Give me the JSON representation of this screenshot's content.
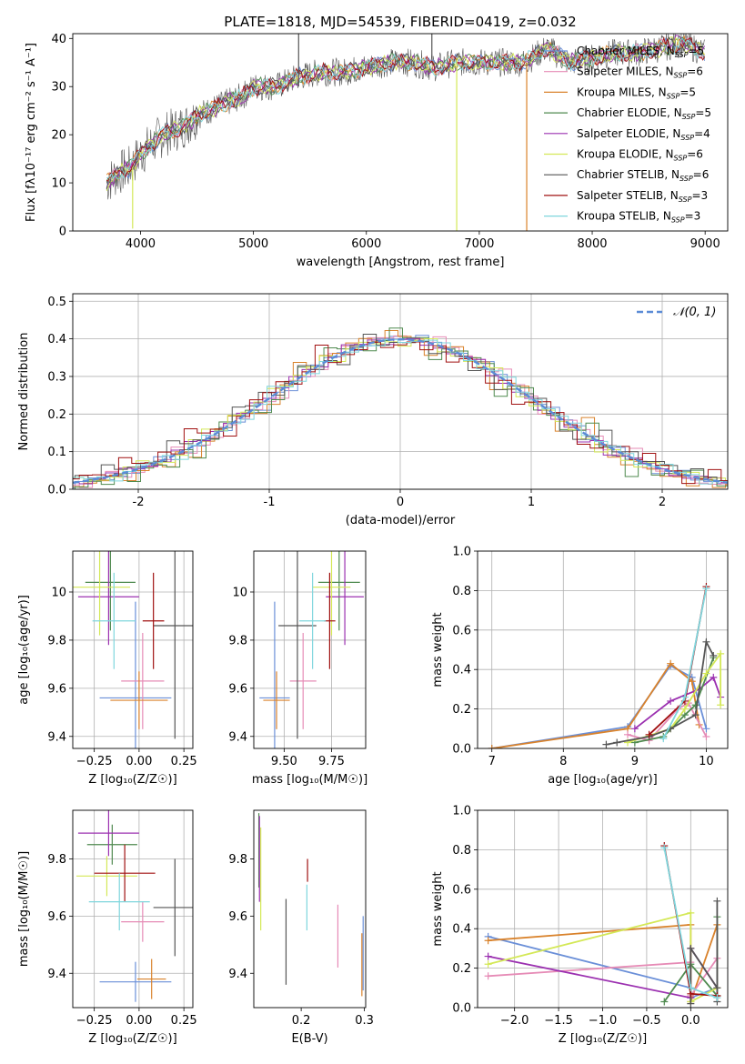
{
  "figure": {
    "title": "PLATE=1818, MJD=54539, FIBERID=0419, z=0.032"
  },
  "colors": {
    "Chabrier MILES": "#6a8fd8",
    "Salpeter MILES": "#e68bb6",
    "Kroupa MILES": "#d9822b",
    "Chabrier ELODIE": "#4f8a4f",
    "Salpeter ELODIE": "#9b30b0",
    "Kroupa ELODIE": "#d4e857",
    "Chabrier STELIB": "#555555",
    "Salpeter STELIB": "#a01010",
    "Kroupa STELIB": "#7fd6dd"
  },
  "chart_data": [
    {
      "id": "spectrum",
      "type": "line",
      "title": "PLATE=1818, MJD=54539, FIBERID=0419, z=0.032",
      "xlabel": "wavelength [Angstrom, rest frame]",
      "ylabel": "Flux [fλ10⁻¹⁷ erg cm⁻² s⁻¹ A⁻¹]",
      "xlim": [
        3400,
        9200
      ],
      "ylim": [
        0,
        41
      ],
      "xticks": [
        4000,
        5000,
        6000,
        7000,
        8000,
        9000
      ],
      "yticks": [
        0,
        10,
        20,
        30,
        40
      ],
      "grid": false,
      "legend_position": "top-right",
      "legend": [
        {
          "series": "Chabrier MILES",
          "text": "Chabrier MILES, N",
          "n": "5"
        },
        {
          "series": "Salpeter MILES",
          "text": "Salpeter MILES, N",
          "n": "6"
        },
        {
          "series": "Kroupa MILES",
          "text": "Kroupa MILES, N",
          "n": "5"
        },
        {
          "series": "Chabrier ELODIE",
          "text": "Chabrier ELODIE, N",
          "n": "5"
        },
        {
          "series": "Salpeter ELODIE",
          "text": "Salpeter ELODIE, N",
          "n": "4"
        },
        {
          "series": "Kroupa ELODIE",
          "text": "Kroupa ELODIE, N",
          "n": "6"
        },
        {
          "series": "Chabrier STELIB",
          "text": "Chabrier STELIB, N",
          "n": "6"
        },
        {
          "series": "Salpeter STELIB",
          "text": "Salpeter STELIB, N",
          "n": "3"
        },
        {
          "series": "Kroupa STELIB",
          "text": "Kroupa STELIB, N",
          "n": "3"
        }
      ],
      "legend_sub": "SSP",
      "continuum": [
        [
          3700,
          10
        ],
        [
          3800,
          12
        ],
        [
          3900,
          13
        ],
        [
          4000,
          16
        ],
        [
          4100,
          18
        ],
        [
          4200,
          20
        ],
        [
          4300,
          21
        ],
        [
          4400,
          22
        ],
        [
          4500,
          24
        ],
        [
          4600,
          25
        ],
        [
          4700,
          26
        ],
        [
          4800,
          27
        ],
        [
          4900,
          28
        ],
        [
          5000,
          30
        ],
        [
          5200,
          30
        ],
        [
          5400,
          32
        ],
        [
          5600,
          33
        ],
        [
          5800,
          33
        ],
        [
          6000,
          34
        ],
        [
          6200,
          35
        ],
        [
          6400,
          35
        ],
        [
          6600,
          34
        ],
        [
          6800,
          35
        ],
        [
          7000,
          35
        ],
        [
          7200,
          35
        ],
        [
          7400,
          35
        ],
        [
          7600,
          38
        ],
        [
          7800,
          35
        ],
        [
          8000,
          36
        ],
        [
          8200,
          37
        ],
        [
          8400,
          37
        ],
        [
          8600,
          38
        ],
        [
          8800,
          39
        ],
        [
          9000,
          37
        ]
      ],
      "features": [
        {
          "x": 5400,
          "y0": 30,
          "y1": 41,
          "series": "Chabrier STELIB"
        },
        {
          "x": 3930,
          "y0": 0.5,
          "y1": 13,
          "series": "Kroupa ELODIE"
        },
        {
          "x": 6800,
          "y0": 0,
          "y1": 36,
          "series": "Kroupa ELODIE"
        },
        {
          "x": 7420,
          "y0": 0,
          "y1": 35,
          "series": "Kroupa MILES"
        },
        {
          "x": 6580,
          "y0": 36,
          "y1": 41,
          "series": "Chabrier STELIB"
        }
      ]
    },
    {
      "id": "residuals",
      "type": "line",
      "xlabel": "(data-model)/error",
      "ylabel": "Normed distribution",
      "xlim": [
        -2.5,
        2.5
      ],
      "ylim": [
        0,
        0.52
      ],
      "xticks": [
        -2,
        -1,
        0,
        1,
        2
      ],
      "yticks": [
        0.0,
        0.1,
        0.2,
        0.3,
        0.4,
        0.5
      ],
      "grid": true,
      "legend_position": "top-right",
      "legend": [
        {
          "text": "𝒩(0, 1)",
          "style": "dashed"
        }
      ],
      "noise": [
        [
          0.03,
          -0.02,
          0.01,
          0.04,
          -0.03,
          0.02,
          -0.01,
          0.03,
          0.05,
          -0.04,
          0.02,
          0.01,
          -0.02,
          0.04,
          -0.03,
          0.06,
          0.01,
          -0.05,
          0.03,
          0.02,
          -0.01,
          0.04,
          -0.02,
          0.03
        ],
        [
          -0.02,
          0.03,
          -0.01,
          0.02,
          0.04,
          -0.03,
          0.01,
          -0.02,
          0.03,
          0.05,
          -0.04,
          0.02,
          0.03,
          -0.01,
          0.02,
          -0.03,
          0.04,
          0.01,
          -0.02,
          0.05,
          0.03,
          -0.02,
          0.01,
          0.02
        ]
      ]
    },
    {
      "id": "age-vs-Z",
      "type": "scatter",
      "xlabel": "Z [log₁₀(Z/Z☉)]",
      "ylabel": "age  [log₁₀(age/yr)]",
      "xlim": [
        -0.37,
        0.3
      ],
      "ylim": [
        9.35,
        10.17
      ],
      "xticks": [
        -0.25,
        0.0,
        0.25
      ],
      "xticklabels": [
        "−0.25",
        "0.00",
        "0.25"
      ],
      "yticks": [
        9.4,
        9.6,
        9.8,
        10.0
      ],
      "grid": true,
      "points": [
        {
          "series": "Chabrier MILES",
          "x": -0.02,
          "y": 9.56,
          "xerr": 0.2,
          "yerr": 0.4
        },
        {
          "series": "Salpeter MILES",
          "x": 0.02,
          "y": 9.63,
          "xerr": 0.12,
          "yerr": 0.2
        },
        {
          "series": "Kroupa MILES",
          "x": 0.0,
          "y": 9.55,
          "xerr": 0.16,
          "yerr": 0.12
        },
        {
          "series": "Chabrier ELODIE",
          "x": -0.16,
          "y": 10.04,
          "xerr": 0.14,
          "yerr": 0.2
        },
        {
          "series": "Salpeter ELODIE",
          "x": -0.17,
          "y": 9.98,
          "xerr": 0.17,
          "yerr": 0.2
        },
        {
          "series": "Kroupa ELODIE",
          "x": -0.22,
          "y": 10.02,
          "xerr": 0.17,
          "yerr": 0.2
        },
        {
          "series": "Chabrier STELIB",
          "x": 0.2,
          "y": 9.86,
          "xerr": 0.12,
          "yerr": 0.47
        },
        {
          "series": "Salpeter STELIB",
          "x": 0.08,
          "y": 9.88,
          "xerr": 0.06,
          "yerr": 0.2
        },
        {
          "series": "Kroupa STELIB",
          "x": -0.14,
          "y": 9.88,
          "xerr": 0.12,
          "yerr": 0.2
        }
      ]
    },
    {
      "id": "age-vs-mass",
      "type": "scatter",
      "xlabel": "mass [log₁₀(M/M☉)]",
      "xlim": [
        9.34,
        9.93
      ],
      "ylim": [
        9.35,
        10.17
      ],
      "xticks": [
        9.5,
        9.75
      ],
      "xticklabels": [
        "9.50",
        "9.75"
      ],
      "yticks": [
        9.4,
        9.6,
        9.8,
        10.0
      ],
      "grid": true,
      "points": [
        {
          "series": "Chabrier MILES",
          "x": 9.45,
          "y": 9.56,
          "xerr": 0.08,
          "yerr": 0.4
        },
        {
          "series": "Salpeter MILES",
          "x": 9.6,
          "y": 9.63,
          "xerr": 0.07,
          "yerr": 0.2
        },
        {
          "series": "Kroupa MILES",
          "x": 9.46,
          "y": 9.55,
          "xerr": 0.07,
          "yerr": 0.12
        },
        {
          "series": "Chabrier ELODIE",
          "x": 9.79,
          "y": 10.04,
          "xerr": 0.11,
          "yerr": 0.2
        },
        {
          "series": "Salpeter ELODIE",
          "x": 9.82,
          "y": 9.98,
          "xerr": 0.1,
          "yerr": 0.2
        },
        {
          "series": "Kroupa ELODIE",
          "x": 9.75,
          "y": 10.02,
          "xerr": 0.1,
          "yerr": 0.2
        },
        {
          "series": "Chabrier STELIB",
          "x": 9.57,
          "y": 9.86,
          "xerr": 0.1,
          "yerr": 0.47
        },
        {
          "series": "Salpeter STELIB",
          "x": 9.74,
          "y": 9.88,
          "xerr": 0.03,
          "yerr": 0.2
        },
        {
          "series": "Kroupa STELIB",
          "x": 9.65,
          "y": 9.88,
          "xerr": 0.07,
          "yerr": 0.2
        }
      ]
    },
    {
      "id": "weight-vs-age",
      "type": "line",
      "xlabel": "age  [log₁₀(age/yr)]",
      "ylabel": "mass weight",
      "xlim": [
        6.8,
        10.3
      ],
      "ylim": [
        0,
        1.0
      ],
      "xticks": [
        7,
        8,
        9,
        10
      ],
      "yticks": [
        0.0,
        0.2,
        0.4,
        0.6,
        0.8,
        1.0
      ],
      "grid": true,
      "series": [
        {
          "name": "Chabrier MILES",
          "x": [
            7.0,
            8.9,
            9.5,
            9.8,
            10.0
          ],
          "y": [
            0.0,
            0.11,
            0.42,
            0.36,
            0.1
          ]
        },
        {
          "name": "Kroupa MILES",
          "x": [
            7.0,
            8.9,
            9.5,
            9.8,
            9.9
          ],
          "y": [
            0.0,
            0.1,
            0.43,
            0.34,
            0.12
          ]
        },
        {
          "name": "Salpeter MILES",
          "x": [
            8.9,
            9.2,
            9.6,
            9.75,
            10.0
          ],
          "y": [
            0.07,
            0.04,
            0.2,
            0.23,
            0.06
          ]
        },
        {
          "name": "Salpeter ELODIE",
          "x": [
            9.0,
            9.5,
            9.9,
            10.1,
            10.2
          ],
          "y": [
            0.1,
            0.24,
            0.3,
            0.36,
            0.26
          ]
        },
        {
          "name": "Chabrier ELODIE",
          "x": [
            9.0,
            9.4,
            9.7,
            9.85,
            10.1
          ],
          "y": [
            0.03,
            0.06,
            0.17,
            0.22,
            0.46
          ]
        },
        {
          "name": "Kroupa ELODIE",
          "x": [
            8.9,
            9.5,
            9.7,
            10.0,
            10.2,
            10.2
          ],
          "y": [
            0.03,
            0.1,
            0.2,
            0.38,
            0.48,
            0.22
          ]
        },
        {
          "name": "Chabrier STELIB",
          "x": [
            8.6,
            8.75,
            9.2,
            9.5,
            9.85,
            10.0,
            10.1
          ],
          "y": [
            0.02,
            0.03,
            0.06,
            0.1,
            0.17,
            0.54,
            0.47
          ]
        },
        {
          "name": "Salpeter STELIB",
          "x": [
            9.2,
            9.7,
            10.0
          ],
          "y": [
            0.07,
            0.24,
            0.82
          ]
        },
        {
          "name": "Kroupa STELIB",
          "x": [
            9.4,
            9.7,
            10.0
          ],
          "y": [
            0.05,
            0.26,
            0.81
          ]
        }
      ]
    },
    {
      "id": "mass-vs-Z",
      "type": "scatter",
      "xlabel": "Z [log₁₀(Z/Z☉)]",
      "ylabel": "mass [log₁₀(M/M☉)]",
      "xlim": [
        -0.37,
        0.3
      ],
      "ylim": [
        9.28,
        9.97
      ],
      "xticks": [
        -0.25,
        0.0,
        0.25
      ],
      "xticklabels": [
        "−0.25",
        "0.00",
        "0.25"
      ],
      "yticks": [
        9.4,
        9.6,
        9.8
      ],
      "grid": true,
      "points": [
        {
          "series": "Chabrier MILES",
          "x": -0.02,
          "y": 9.37,
          "xerr": 0.2,
          "yerr": 0.07
        },
        {
          "series": "Salpeter MILES",
          "x": 0.02,
          "y": 9.58,
          "xerr": 0.12,
          "yerr": 0.07
        },
        {
          "series": "Kroupa MILES",
          "x": 0.07,
          "y": 9.38,
          "xerr": 0.08,
          "yerr": 0.07
        },
        {
          "series": "Chabrier ELODIE",
          "x": -0.15,
          "y": 9.85,
          "xerr": 0.14,
          "yerr": 0.07
        },
        {
          "series": "Salpeter ELODIE",
          "x": -0.17,
          "y": 9.89,
          "xerr": 0.17,
          "yerr": 0.08
        },
        {
          "series": "Kroupa ELODIE",
          "x": -0.18,
          "y": 9.74,
          "xerr": 0.17,
          "yerr": 0.07
        },
        {
          "series": "Chabrier STELIB",
          "x": 0.2,
          "y": 9.63,
          "xerr": 0.12,
          "yerr": 0.17
        },
        {
          "series": "Salpeter STELIB",
          "x": -0.08,
          "y": 9.75,
          "xerr": 0.17,
          "yerr": 0.1
        },
        {
          "series": "Kroupa STELIB",
          "x": -0.11,
          "y": 9.65,
          "xerr": 0.17,
          "yerr": 0.1
        }
      ]
    },
    {
      "id": "mass-vs-EBV",
      "type": "scatter",
      "xlabel": "E(B-V)",
      "xlim": [
        0.125,
        0.302
      ],
      "ylim": [
        9.28,
        9.97
      ],
      "xticks": [
        0.2,
        0.3
      ],
      "xticklabels": [
        "0.2",
        "0.3"
      ],
      "yticks": [
        9.4,
        9.6,
        9.8
      ],
      "grid": false,
      "points": [
        {
          "series": "Chabrier MILES",
          "x": 0.298,
          "y": 9.47,
          "yerr": 0.13
        },
        {
          "series": "Salpeter MILES",
          "x": 0.258,
          "y": 9.53,
          "yerr": 0.11
        },
        {
          "series": "Kroupa MILES",
          "x": 0.296,
          "y": 9.43,
          "yerr": 0.11
        },
        {
          "series": "Chabrier ELODIE",
          "x": 0.133,
          "y": 9.83,
          "yerr": 0.13
        },
        {
          "series": "Salpeter ELODIE",
          "x": 0.134,
          "y": 9.8,
          "yerr": 0.15
        },
        {
          "series": "Kroupa ELODIE",
          "x": 0.136,
          "y": 9.73,
          "yerr": 0.18
        },
        {
          "series": "Chabrier STELIB",
          "x": 0.176,
          "y": 9.51,
          "yerr": 0.15
        },
        {
          "series": "Salpeter STELIB",
          "x": 0.21,
          "y": 9.76,
          "yerr": 0.04
        },
        {
          "series": "Kroupa STELIB",
          "x": 0.209,
          "y": 9.63,
          "yerr": 0.08
        }
      ]
    },
    {
      "id": "weight-vs-Z",
      "type": "line",
      "xlabel": "Z [log₁₀(Z/Z☉)]",
      "ylabel": "mass weight",
      "xlim": [
        -2.42,
        0.42
      ],
      "ylim": [
        0,
        1.0
      ],
      "xticks": [
        -2.0,
        -1.5,
        -1.0,
        -0.5,
        0.0
      ],
      "xticklabels": [
        "−2.0",
        "−1.5",
        "−1.0",
        "−0.5",
        "0.0"
      ],
      "yticks": [
        0.0,
        0.2,
        0.4,
        0.6,
        0.8,
        1.0
      ],
      "grid": true,
      "series": [
        {
          "name": "Chabrier MILES",
          "x": [
            -2.3,
            0.0,
            0.0,
            0.3
          ],
          "y": [
            0.36,
            0.1,
            0.05,
            0.1
          ]
        },
        {
          "name": "Kroupa MILES",
          "x": [
            -2.3,
            0.0,
            0.0,
            0.3
          ],
          "y": [
            0.34,
            0.42,
            0.03,
            0.42
          ]
        },
        {
          "name": "Salpeter MILES",
          "x": [
            -2.3,
            0.0,
            0.0,
            0.3,
            0.3
          ],
          "y": [
            0.16,
            0.23,
            0.06,
            0.25,
            0.06
          ]
        },
        {
          "name": "Salpeter ELODIE",
          "x": [
            -2.3,
            0.0,
            0.0,
            0.3
          ],
          "y": [
            0.26,
            0.05,
            0.3,
            0.1
          ]
        },
        {
          "name": "Chabrier ELODIE",
          "x": [
            -0.3,
            0.0,
            0.3,
            0.3
          ],
          "y": [
            0.03,
            0.22,
            0.06,
            0.46
          ]
        },
        {
          "name": "Kroupa ELODIE",
          "x": [
            -2.3,
            0.0,
            0.0,
            0.3
          ],
          "y": [
            0.22,
            0.48,
            0.03,
            0.1
          ]
        },
        {
          "name": "Chabrier STELIB",
          "x": [
            0.0,
            0.0,
            0.3,
            0.3,
            0.3
          ],
          "y": [
            0.02,
            0.3,
            0.1,
            0.54,
            0.03
          ]
        },
        {
          "name": "Salpeter STELIB",
          "x": [
            -0.3,
            0.0,
            0.3
          ],
          "y": [
            0.82,
            0.07,
            0.06
          ]
        },
        {
          "name": "Kroupa STELIB",
          "x": [
            -0.3,
            0.0,
            0.3
          ],
          "y": [
            0.81,
            0.1,
            0.05
          ]
        }
      ]
    }
  ]
}
